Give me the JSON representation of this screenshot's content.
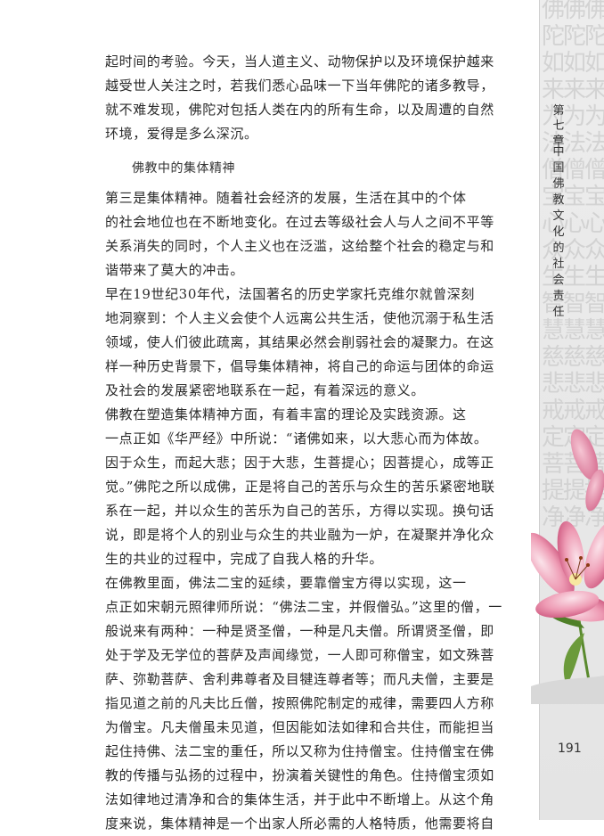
{
  "body": {
    "para1": [
      "起时间的考验。今天，当人道主义、动物保护以及环境保护越来",
      "越受世人关注之时，若我们悉心品味一下当年佛陀的诸多教导，",
      "就不难发现，佛陀对包括人类在内的所有生命，以及周遭的自然",
      "环境，爱得是多么深沉。"
    ],
    "section_heading": "佛教中的集体精神",
    "para2": [
      "第三是集体精神。随着社会经济的发展，生活在其中的个体",
      "的社会地位也在不断地变化。在过去等级社会人与人之间不平等",
      "关系消失的同时，个人主义也在泛滥，这给整个社会的稳定与和",
      "谐带来了莫大的冲击。"
    ],
    "para3": [
      "早在19世纪30年代，法国著名的历史学家托克维尔就曾深刻",
      "地洞察到：个人主义会使个人远离公共生活，使他沉溺于私生活",
      "领域，使人们彼此疏离，其结果必然会削弱社会的凝聚力。在这",
      "样一种历史背景下，倡导集体精神，将自己的命运与团体的命运",
      "及社会的发展紧密地联系在一起，有着深远的意义。"
    ],
    "para4": [
      "佛教在塑造集体精神方面，有着丰富的理论及实践资源。这",
      "一点正如《华严经》中所说：“诸佛如来，以大悲心而为体故。",
      "因于众生，而起大悲；因于大悲，生菩提心；因菩提心，成等正",
      "觉。”佛陀之所以成佛，正是将自己的苦乐与众生的苦乐紧密地联",
      "系在一起，并以众生的苦乐为自己的苦乐，方得以实现。换句话",
      "说，即是将个人的别业与众生的共业融为一炉，在凝聚并净化众",
      "生的共业的过程中，完成了自我人格的升华。"
    ],
    "para5": [
      "在佛教里面，佛法二宝的延续，要靠僧宝方得以实现，这一",
      "点正如宋朝元照律师所说：“佛法二宝，并假僧弘。”这里的僧，一",
      "般说来有两种：一种是贤圣僧，一种是凡夫僧。所谓贤圣僧，即",
      "处于学及无学位的菩萨及声闻缘觉，一人即可称僧宝，如文殊菩",
      "萨、弥勒菩萨、舍利弗尊者及目犍连尊者等；而凡夫僧，主要是",
      "指见道之前的凡夫比丘僧，按照佛陀制定的戒律，需要四人方称",
      "为僧宝。凡夫僧虽未见道，但因能如法如律和合共住，而能担当",
      "起住持佛、法二宝的重任，所以又称为住持僧宝。住持僧宝在佛",
      "教的传播与弘扬的过程中，扮演着关键性的角色。住持僧宝须如",
      "法如律地过清净和合的集体生活，并于此中不断增上。从这个角",
      "度来说，集体精神是一个出家人所必需的人格特质，他需要将自"
    ]
  },
  "sidebar": {
    "chapter_label": "第七章",
    "chapter_title": "中国佛教文化的社会责任",
    "calligraphy_chars": [
      "佛",
      "陀",
      "如",
      "来",
      "为",
      "法",
      "僧",
      "宝",
      "心",
      "众",
      "生",
      "智",
      "慧",
      "慈",
      "悲",
      "戒",
      "定",
      "菩",
      "提",
      "净"
    ]
  },
  "page_number": "191",
  "colors": {
    "text": "#2a2a2a",
    "sidebar_bg": "#e6e6e6",
    "flower_pink": "#e98aa6",
    "leaf_green": "#5a8a2e"
  }
}
